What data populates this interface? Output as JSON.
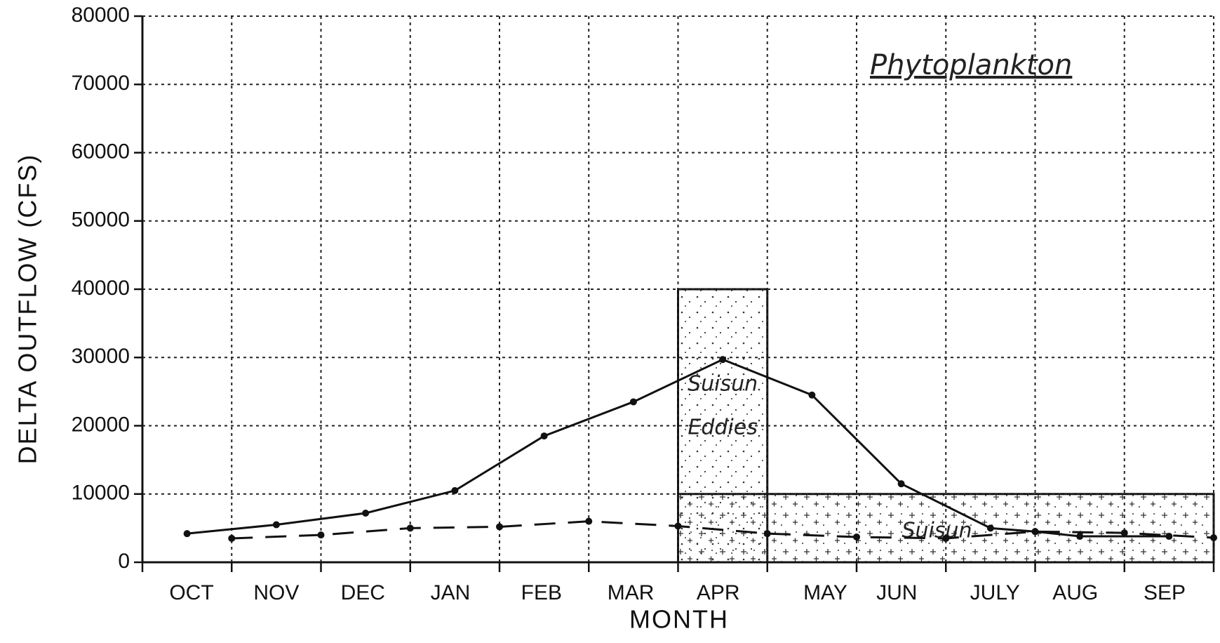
{
  "chart_data": {
    "type": "line",
    "title": "Phytoplankton",
    "xlabel": "MONTH",
    "ylabel": "DELTA OUTFLOW (CFS)",
    "xlim": [
      0,
      12
    ],
    "ylim": [
      0,
      80000
    ],
    "yticks": [
      0,
      10000,
      20000,
      30000,
      40000,
      50000,
      60000,
      70000,
      80000
    ],
    "xticks": [
      {
        "value": 0.55,
        "label": "OCT"
      },
      {
        "value": 1.5,
        "label": "NOV"
      },
      {
        "value": 2.47,
        "label": "DEC"
      },
      {
        "value": 3.45,
        "label": "JAN"
      },
      {
        "value": 4.47,
        "label": "FEB"
      },
      {
        "value": 5.47,
        "label": "MAR"
      },
      {
        "value": 6.45,
        "label": "APR"
      },
      {
        "value": 7.65,
        "label": "MAY"
      },
      {
        "value": 8.45,
        "label": "JUN"
      },
      {
        "value": 9.55,
        "label": "JULY"
      },
      {
        "value": 10.45,
        "label": "AUG"
      },
      {
        "value": 11.45,
        "label": "SEP"
      }
    ],
    "xgrid": [
      0,
      1,
      2,
      3,
      4,
      5,
      6,
      7,
      8,
      9,
      10,
      11,
      12
    ],
    "grid": true,
    "series": [
      {
        "style": "solid",
        "color": "#111111",
        "x": [
          0.5,
          1.5,
          2.5,
          3.5,
          4.5,
          5.5,
          6.5,
          7.5,
          8.5,
          9.5,
          10,
          10.5,
          11.5
        ],
        "values": [
          4200,
          5500,
          7200,
          10500,
          18500,
          23500,
          29700,
          24500,
          11500,
          5000,
          4500,
          3800,
          3800
        ]
      },
      {
        "style": "dashed",
        "color": "#111111",
        "x": [
          1,
          2,
          3,
          4,
          5,
          6,
          7,
          8,
          9,
          10,
          11,
          12
        ],
        "values": [
          3500,
          4000,
          5000,
          5200,
          6000,
          5300,
          4200,
          3700,
          3500,
          4500,
          4300,
          3600
        ]
      }
    ],
    "regions": [
      {
        "x": [
          6,
          7
        ],
        "y": [
          0,
          40000
        ],
        "pattern": "dots",
        "labels": [
          "Suisun",
          "Eddies"
        ]
      },
      {
        "x": [
          6,
          12
        ],
        "y": [
          0,
          10000
        ],
        "pattern": "plus",
        "labels": [
          "Suisun"
        ]
      }
    ]
  }
}
